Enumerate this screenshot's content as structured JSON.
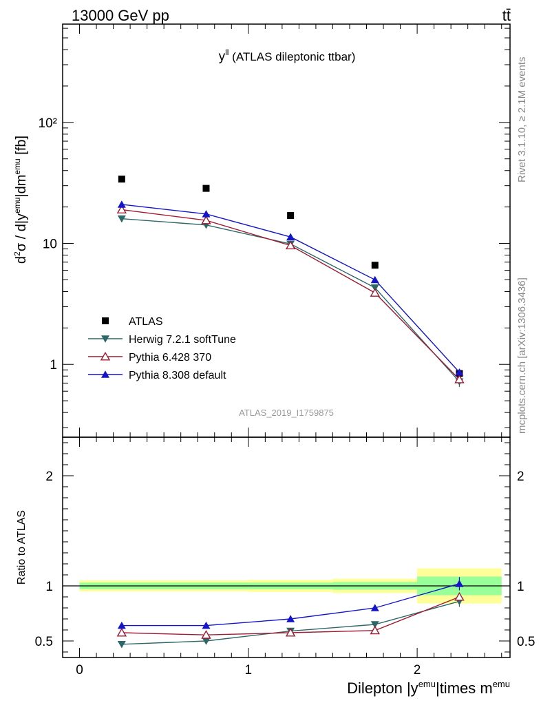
{
  "header": {
    "energy_label": "13000 GeV pp",
    "process_label": "tt̄"
  },
  "side_labels": {
    "rivet": "Rivet 3.1.10, ≥ 2.1M events",
    "mcplots": "mcplots.cern.ch [arXiv:1306.3436]"
  },
  "chart_data": [
    {
      "type": "scatter",
      "panel": "main",
      "title_main": "y",
      "title_sup": "ll",
      "title_rest": " (ATLAS dileptonic ttbar)",
      "ylabel": "d²σ / d|y^emu|dm^emu [fb]",
      "yscale": "log",
      "ylim": [
        0.25,
        650
      ],
      "xlim": [
        -0.1,
        2.55
      ],
      "yticks": [
        {
          "value": 1,
          "label": "1"
        },
        {
          "value": 10,
          "label": "10"
        },
        {
          "value": 100,
          "label": "10²"
        }
      ],
      "watermark": "ATLAS_2019_I1759875",
      "legend_position": "bottom-left",
      "x": [
        0.25,
        0.75,
        1.25,
        1.75,
        2.25
      ],
      "series": [
        {
          "name": "ATLAS",
          "marker": "square",
          "color": "#000000",
          "values": [
            34,
            28.5,
            17,
            6.6,
            0.84
          ],
          "errors": [
            0,
            0,
            0,
            0,
            0.03
          ]
        },
        {
          "name": "Herwig 7.2.1 softTune",
          "marker": "triangle-down-filled",
          "color": "#2d6767",
          "values": [
            16,
            14.2,
            9.9,
            4.3,
            0.72
          ],
          "errors": [
            0,
            0,
            0,
            0,
            0.07
          ]
        },
        {
          "name": "Pythia 6.428 370",
          "marker": "triangle-up-open",
          "color": "#9e1b32",
          "values": [
            19,
            15.5,
            9.6,
            3.9,
            0.75
          ],
          "errors": [
            0,
            0,
            0,
            0,
            0.03
          ]
        },
        {
          "name": "Pythia 8.308 default",
          "marker": "triangle-up-filled",
          "color": "#1414c8",
          "values": [
            21,
            17.5,
            11.3,
            5.0,
            0.86
          ],
          "errors": [
            0,
            0,
            0,
            0,
            0.05
          ]
        }
      ]
    },
    {
      "type": "scatter",
      "panel": "ratio",
      "ylabel": "Ratio to ATLAS",
      "xlabel": "Dilepton |y^emu|times m^emu",
      "ylim": [
        0.35,
        2.35
      ],
      "xlim": [
        -0.1,
        2.55
      ],
      "xticks": [
        {
          "value": 0,
          "label": "0"
        },
        {
          "value": 1,
          "label": "1"
        },
        {
          "value": 2,
          "label": "2"
        }
      ],
      "yticks": [
        {
          "value": 0.5,
          "label": "0.5"
        },
        {
          "value": 1,
          "label": "1"
        },
        {
          "value": 2,
          "label": "2"
        }
      ],
      "bands": [
        {
          "x0": 0.0,
          "x1": 1.0,
          "outer": [
            0.95,
            1.05
          ],
          "inner": [
            0.97,
            1.03
          ]
        },
        {
          "x0": 1.0,
          "x1": 1.5,
          "outer": [
            0.945,
            1.055
          ],
          "inner": [
            0.97,
            1.03
          ]
        },
        {
          "x0": 1.5,
          "x1": 2.0,
          "outer": [
            0.935,
            1.065
          ],
          "inner": [
            0.965,
            1.035
          ]
        },
        {
          "x0": 2.0,
          "x1": 2.5,
          "outer": [
            0.84,
            1.16
          ],
          "inner": [
            0.915,
            1.085
          ]
        }
      ],
      "band_colors": {
        "outer": "#ffff99",
        "inner": "#99ff99"
      },
      "x": [
        0.25,
        0.75,
        1.25,
        1.75,
        2.25
      ],
      "series": [
        {
          "name": "Herwig 7.2.1 softTune",
          "marker": "triangle-down-filled",
          "color": "#2d6767",
          "values": [
            0.47,
            0.5,
            0.59,
            0.65,
            0.86
          ],
          "errors": [
            0,
            0,
            0,
            0,
            0.05
          ]
        },
        {
          "name": "Pythia 6.428 370",
          "marker": "triangle-up-open",
          "color": "#9e1b32",
          "values": [
            0.575,
            0.555,
            0.575,
            0.595,
            0.9
          ],
          "errors": [
            0,
            0,
            0,
            0,
            0.03
          ]
        },
        {
          "name": "Pythia 8.308 default",
          "marker": "triangle-up-filled",
          "color": "#1414c8",
          "values": [
            0.64,
            0.64,
            0.7,
            0.8,
            1.02
          ],
          "errors": [
            0,
            0,
            0,
            0.02,
            0.06
          ]
        }
      ]
    }
  ]
}
